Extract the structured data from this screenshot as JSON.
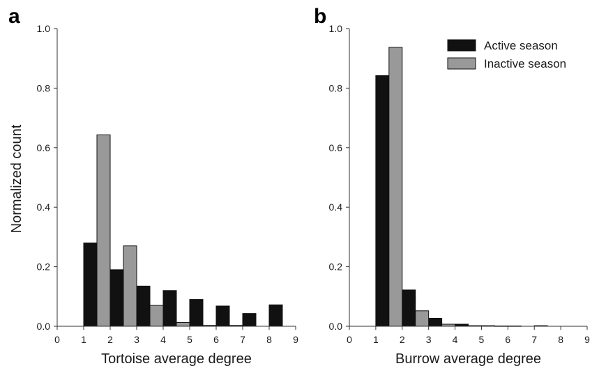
{
  "chart_data": [
    {
      "type": "bar",
      "panel_label": "a",
      "xlabel": "Tortoise average degree",
      "ylabel": "Normalized count",
      "xlim": [
        0,
        9
      ],
      "ylim": [
        0,
        1.0
      ],
      "xticks": [
        "0",
        "1",
        "2",
        "3",
        "4",
        "5",
        "6",
        "7",
        "8",
        "9"
      ],
      "yticks": [
        "0.0",
        "0.2",
        "0.4",
        "0.6",
        "0.8",
        "1.0"
      ],
      "bin_edges": [
        1,
        2,
        3,
        4,
        5,
        6,
        7,
        8,
        9
      ],
      "grid": false,
      "series": [
        {
          "name": "Active season",
          "color": "#111111",
          "values": [
            0.28,
            0.19,
            0.135,
            0.12,
            0.09,
            0.068,
            0.043,
            0.072
          ]
        },
        {
          "name": "Inactive season",
          "color": "#999999",
          "values": [
            0.643,
            0.27,
            0.07,
            0.013,
            0.003,
            0.003,
            0.0,
            0.0
          ]
        }
      ]
    },
    {
      "type": "bar",
      "panel_label": "b",
      "xlabel": "Burrow average degree",
      "ylabel": "",
      "xlim": [
        0,
        9
      ],
      "ylim": [
        0,
        1.0
      ],
      "xticks": [
        "0",
        "1",
        "2",
        "3",
        "4",
        "5",
        "6",
        "7",
        "8",
        "9"
      ],
      "yticks": [
        "0.0",
        "0.2",
        "0.4",
        "0.6",
        "0.8",
        "1.0"
      ],
      "bin_edges": [
        1,
        2,
        3,
        4,
        5,
        6,
        7,
        8,
        9
      ],
      "grid": false,
      "legend": "top-right",
      "series": [
        {
          "name": "Active season",
          "color": "#111111",
          "values": [
            0.842,
            0.122,
            0.027,
            0.007,
            0.002,
            0.001,
            0.002,
            0.0
          ]
        },
        {
          "name": "Inactive season",
          "color": "#999999",
          "values": [
            0.937,
            0.052,
            0.007,
            0.002,
            0.001,
            0.0,
            0.0,
            0.0
          ]
        }
      ]
    }
  ]
}
